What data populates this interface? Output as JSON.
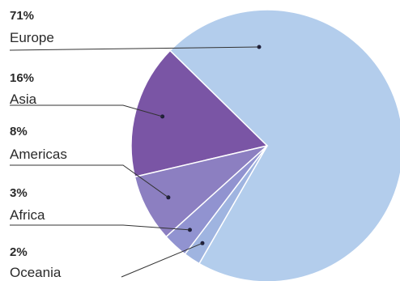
{
  "chart_data": {
    "type": "pie",
    "title": "",
    "slices": [
      {
        "label": "Europe",
        "percent_label": "71%",
        "value": 71,
        "color": "#b3cdec"
      },
      {
        "label": "Asia",
        "percent_label": "16%",
        "value": 16,
        "color": "#7a55a5"
      },
      {
        "label": "Americas",
        "percent_label": "8%",
        "value": 8,
        "color": "#8c7fc1"
      },
      {
        "label": "Africa",
        "percent_label": "3%",
        "value": 3,
        "color": "#9193d0"
      },
      {
        "label": "Oceania",
        "percent_label": "2%",
        "value": 2,
        "color": "#9fb4e0"
      }
    ]
  }
}
